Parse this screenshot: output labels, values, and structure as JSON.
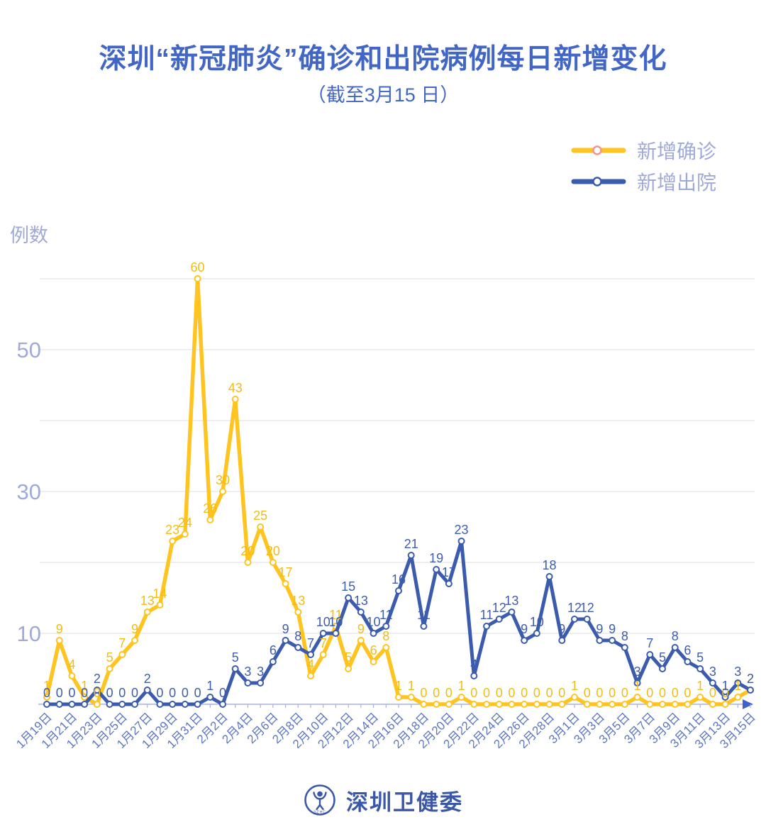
{
  "colors": {
    "title": "#4166C6",
    "axis_text": "#A0AAD8",
    "x_tick_text": "#5C77C2",
    "grid": "#E3E3E3",
    "axis_line": "#A9B2DC",
    "axis_arrow": "#3F63C8",
    "footer_blue": "#3A57A8",
    "background": "#FFFFFF",
    "marker_fill": "#FFFFFF"
  },
  "footer": {
    "org_name": "深圳卫健委",
    "logo_text": "SZHC"
  },
  "chart_data": {
    "type": "line",
    "title": "深圳“新冠肺炎”确诊和出院病例每日新增变化",
    "subtitle": "（截至3月15 日）",
    "ylabel": "例数",
    "ylim": [
      0,
      62
    ],
    "yticks_labeled": [
      10,
      30,
      50
    ],
    "gridlines_y": [
      10,
      20,
      30,
      40,
      50,
      60
    ],
    "grid": true,
    "x_label_every": 2,
    "legend_position": "top-right",
    "categories": [
      "1月19日",
      "1月20日",
      "1月21日",
      "1月22日",
      "1月23日",
      "1月24日",
      "1月25日",
      "1月26日",
      "1月27日",
      "1月28日",
      "1月29日",
      "1月30日",
      "1月31日",
      "2月1日",
      "2月2日",
      "2月3日",
      "2月4日",
      "2月5日",
      "2月6日",
      "2月7日",
      "2月8日",
      "2月9日",
      "2月10日",
      "2月11日",
      "2月12日",
      "2月13日",
      "2月14日",
      "2月15日",
      "2月16日",
      "2月17日",
      "2月18日",
      "2月19日",
      "2月20日",
      "2月21日",
      "2月22日",
      "2月23日",
      "2月24日",
      "2月25日",
      "2月26日",
      "2月27日",
      "2月28日",
      "2月29日",
      "3月1日",
      "3月2日",
      "3月3日",
      "3月4日",
      "3月5日",
      "3月6日",
      "3月7日",
      "3月8日",
      "3月9日",
      "3月10日",
      "3月11日",
      "3月12日",
      "3月13日",
      "3月14日",
      "3月15日"
    ],
    "series": [
      {
        "name": "新增确诊",
        "color": "#FFC41F",
        "label_color": "#F1BD15",
        "legend_marker_stroke": "#F2968E",
        "values": [
          1,
          9,
          4,
          1,
          0,
          5,
          7,
          9,
          13,
          14,
          23,
          24,
          60,
          26,
          30,
          43,
          20,
          25,
          20,
          17,
          13,
          4,
          7,
          11,
          5,
          9,
          6,
          8,
          1,
          1,
          0,
          0,
          0,
          1,
          0,
          0,
          0,
          0,
          0,
          0,
          0,
          0,
          1,
          0,
          0,
          0,
          0,
          1,
          0,
          0,
          0,
          0,
          1,
          0,
          0,
          1,
          2
        ]
      },
      {
        "name": "新增出院",
        "color": "#3B5BAC",
        "label_color": "#3E5DAE",
        "legend_marker_stroke": "#3B5BAC",
        "values": [
          0,
          0,
          0,
          0,
          2,
          0,
          0,
          0,
          2,
          0,
          0,
          0,
          0,
          1,
          0,
          5,
          3,
          3,
          6,
          9,
          8,
          7,
          10,
          10,
          15,
          13,
          10,
          11,
          16,
          21,
          11,
          19,
          17,
          23,
          4,
          11,
          12,
          13,
          9,
          10,
          18,
          9,
          12,
          12,
          9,
          9,
          8,
          3,
          7,
          5,
          8,
          6,
          5,
          3,
          1,
          3,
          2
        ]
      }
    ]
  }
}
